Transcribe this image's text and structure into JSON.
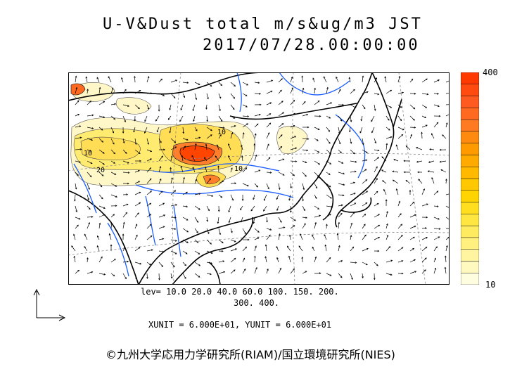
{
  "title": {
    "line1": "U-V&Dust total m/s&ug/m3 JST",
    "line2": "2017/07/28.00:00:00"
  },
  "legend": {
    "max_label": "400",
    "min_label": "10",
    "min_value": 10,
    "max_value": 400,
    "colors": [
      "#fffde0",
      "#fff9c0",
      "#fff5a0",
      "#fff080",
      "#ffeb60",
      "#ffe640",
      "#ffde20",
      "#ffd400",
      "#ffc800",
      "#ffba00",
      "#ffaa00",
      "#ff9a00",
      "#ff8a10",
      "#ff7a20",
      "#ff6a20",
      "#ff5a20",
      "#ff4a10",
      "#ff3a00"
    ]
  },
  "levels": {
    "line1": "lev= 10.0 20.0 40.0 60.0 100. 150. 200.",
    "line2": "300. 400."
  },
  "units": "XUNIT = 6.000E+01, YUNIT = 6.000E+01",
  "copyright": "©九州大学応用力学研究所(RIAM)/国立環境研究所(NIES)",
  "map": {
    "contour_labels": [
      "10",
      "20",
      "10",
      "10"
    ],
    "colors": {
      "low": "#fff7c8",
      "mid": "#ffdd55",
      "high": "#ff7f2a",
      "peak": "#ff4500",
      "coast": "#000000",
      "river": "#1a5cff",
      "grid": "#888888"
    }
  }
}
